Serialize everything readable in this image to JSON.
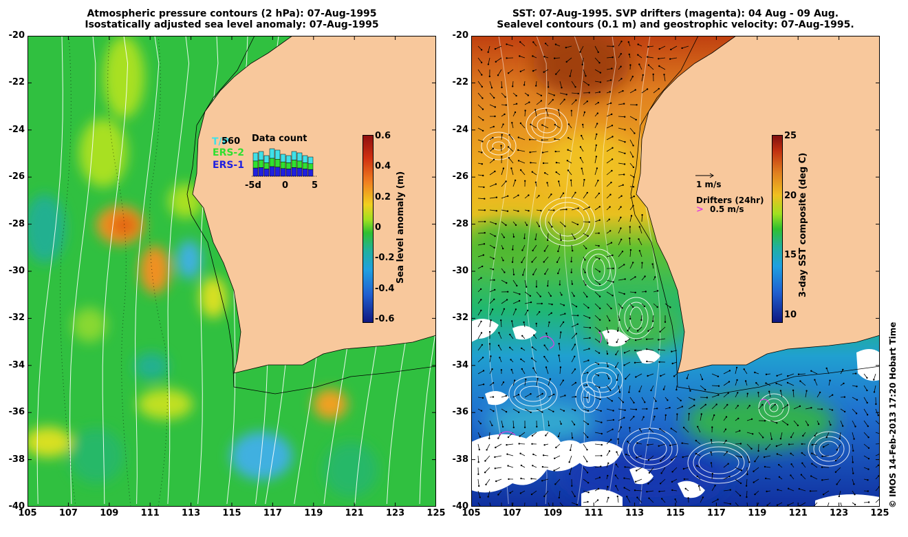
{
  "left_panel": {
    "title_line1": "Atmospheric pressure contours (2 hPa): 07-Aug-1995",
    "title_line2": "Isostatically adjusted sea level anomaly: 07-Aug-1995",
    "colorbar": {
      "label": "Sea level anomaly (m)",
      "ticks": [
        "0.6",
        "0.4",
        "0.2",
        "0",
        "-0.2",
        "-0.4",
        "-0.6"
      ]
    },
    "inset": {
      "title": "Data count",
      "count": "560",
      "legend": [
        {
          "name": "T/P",
          "color": "#40e0e8"
        },
        {
          "name": "ERS-2",
          "color": "#30e030"
        },
        {
          "name": "ERS-1",
          "color": "#2020e0"
        }
      ],
      "x_ticks": [
        "-5d",
        "0",
        "5"
      ]
    }
  },
  "right_panel": {
    "title_line1": "SST: 07-Aug-1995. SVP drifters (magenta): 04 Aug - 09 Aug.",
    "title_line2": "Sealevel contours (0.1 m) and geostrophic velocity: 07-Aug-1995.",
    "colorbar": {
      "label": "3-day SST composite (deg C)",
      "ticks": [
        "25",
        "20",
        "15",
        "10"
      ]
    },
    "velocity_scale": "1 m/s",
    "drifters_label": "Drifters (24hr)",
    "drifters_scale": "0.5 m/s"
  },
  "axes": {
    "lat_ticks": [
      "-20",
      "-22",
      "-24",
      "-26",
      "-28",
      "-30",
      "-32",
      "-34",
      "-36",
      "-38",
      "-40"
    ],
    "lon_ticks": [
      "105",
      "107",
      "109",
      "111",
      "113",
      "115",
      "117",
      "119",
      "121",
      "123",
      "125"
    ]
  },
  "credit": "© IMOS 14-Feb-2013 17:20 Hobart Time",
  "colors": {
    "land": "#f8c89c",
    "ocean_base": "#30c040",
    "high_anomaly": "#e07010",
    "low_anomaly": "#20a0e0",
    "drifter": "#e040e0"
  }
}
